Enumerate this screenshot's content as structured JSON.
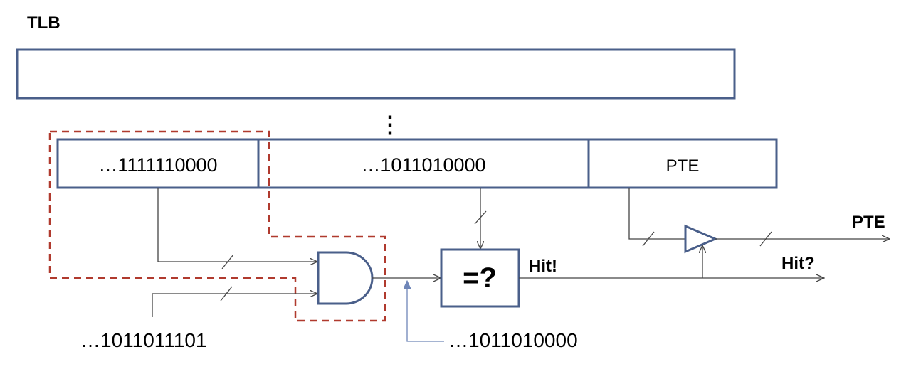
{
  "title": "TLB",
  "entry": {
    "mask": "…1111110000",
    "tag": "…1011010000",
    "pte": "PTE"
  },
  "ellipsis": "⋮",
  "input_address": "…1011011101",
  "compare_value": "…1011010000",
  "comparator_symbol": "=?",
  "hit_bang": "Hit!",
  "hit_question": "Hit?",
  "pte_output": "PTE",
  "colors": {
    "box_stroke": "#4a5f8a",
    "dashed_outline": "#b03a2e",
    "wire": "#444444",
    "arrow_blue": "#6f86b8"
  }
}
